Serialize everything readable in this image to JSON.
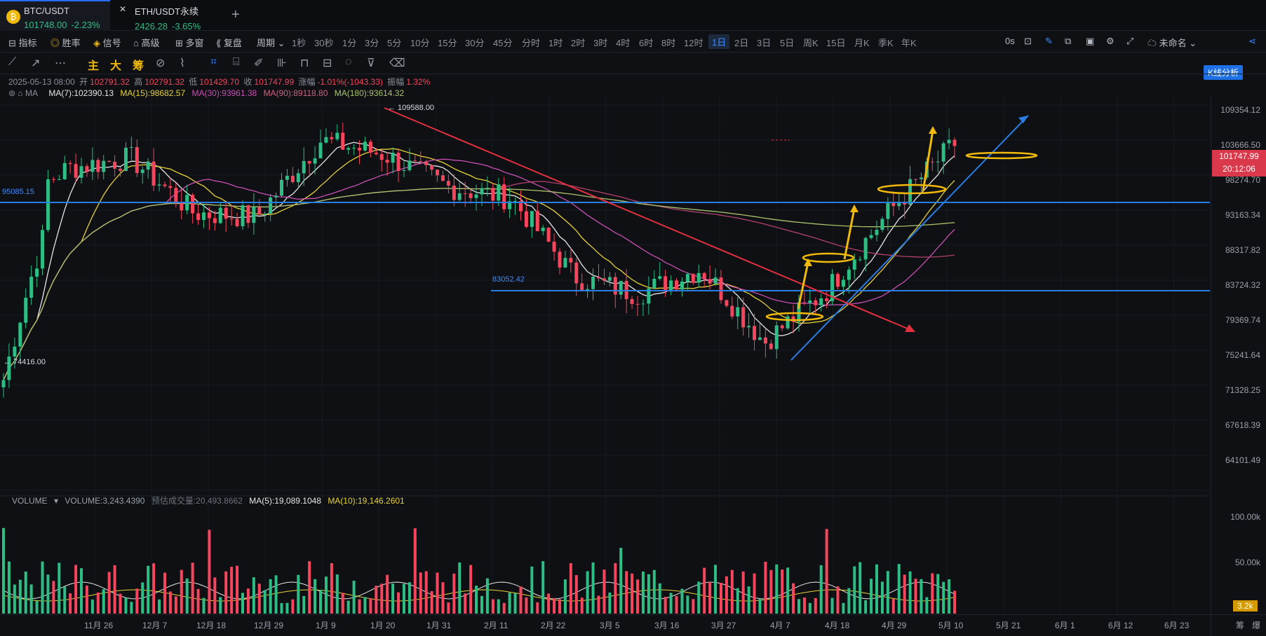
{
  "tabs": [
    {
      "symbol": "BTC/USDT",
      "price": "101748.00",
      "change": "-2.23%",
      "icon": "binance-coin-icon"
    },
    {
      "symbol": "ETH/USDT永续",
      "price": "2426.28",
      "change": "-3.65%",
      "icon": "close-x-icon"
    }
  ],
  "toolbar1": {
    "items": [
      "指标",
      "胜率",
      "信号",
      "高级",
      "多窗",
      "复盘",
      "周期"
    ],
    "periods": [
      "1秒",
      "30秒",
      "1分",
      "3分",
      "5分",
      "10分",
      "15分",
      "30分",
      "45分",
      "分时",
      "1时",
      "2时",
      "3时",
      "4时",
      "6时",
      "8时",
      "12时",
      "1日",
      "2日",
      "3日",
      "5日",
      "周K",
      "15日",
      "月K",
      "季K",
      "年K"
    ],
    "selected_period": "1日",
    "countdown": "0s",
    "layout_name": "未命名",
    "analysis_btn": "K线分析"
  },
  "toolbar2": {
    "labels": [
      "主",
      "大",
      "筹"
    ]
  },
  "ohlc": {
    "date": "2025-05-13 08:00",
    "open_label": "开",
    "open": "102791.32",
    "high_label": "高",
    "high": "102791.32",
    "low_label": "低",
    "low": "101429.70",
    "close_label": "收",
    "close": "101747.99",
    "change_label": "涨幅",
    "change": "-1.01%(-1043.33)",
    "amp_label": "振幅",
    "amp": "1.32%"
  },
  "ma": {
    "label": "MA",
    "ma7": "MA(7):102390.13",
    "ma15": "MA(15):98682.57",
    "ma30": "MA(30):93961.38",
    "ma90": "MA(90):89118.80",
    "ma180": "MA(180):93614.32",
    "colors": {
      "ma7": "#e6e6e6",
      "ma15": "#e8d23a",
      "ma30": "#c94fb3",
      "ma90": "#b4426c",
      "ma180": "#a9c46a"
    }
  },
  "annotations": {
    "high_marker": "109588.00",
    "low_marker": "74416.00",
    "line1_label": "95085.15",
    "line2_label": "83052.42"
  },
  "price_axis": {
    "ticks": [
      "109354.12",
      "103666.50",
      "98274.70",
      "93163.34",
      "88317.82",
      "83724.32",
      "79369.74",
      "75241.64",
      "71328.25",
      "67618.39",
      "64101.49"
    ],
    "last_price": "101747.99",
    "countdown": "20:12:06",
    "vol_ticks": [
      "100.00k",
      "50.00k"
    ],
    "vol_last": "3.2k"
  },
  "volume": {
    "label": "VOLUME",
    "value": "VOLUME:3,243.4390",
    "est": "预估成交量:20,493.8662",
    "ma5": "MA(5):19,089.1048",
    "ma10": "MA(10):19,146.2601"
  },
  "date_axis": [
    "11月 26",
    "12月 7",
    "12月 18",
    "12月 29",
    "1月 9",
    "1月 20",
    "1月 31",
    "2月 11",
    "2月 22",
    "3月 5",
    "3月 16",
    "3月 27",
    "4月 7",
    "4月 18",
    "4月 29",
    "5月 10",
    "5月 21",
    "6月 1",
    "6月 12",
    "6月 23"
  ],
  "date_axis_right": [
    "筹",
    "爆"
  ],
  "colors": {
    "up": "#2ebd85",
    "down": "#f6465d",
    "accent": "#2a6df4",
    "line_blue": "#2a7de1",
    "trend_red": "#e2303f",
    "marker_yellow": "#f0b90b"
  },
  "chart_data": {
    "type": "candlestick",
    "x": [
      "11月 26",
      "12月 7",
      "12月 18",
      "12月 29",
      "1月 9",
      "1月 20",
      "1月 31",
      "2月 11",
      "2月 22",
      "3月 5",
      "3月 16",
      "3月 27",
      "4月 7",
      "4月 18",
      "4月 29",
      "5月 10"
    ],
    "close": [
      94000,
      100000,
      101500,
      94000,
      93500,
      104000,
      102000,
      97500,
      96000,
      86000,
      84000,
      87000,
      78500,
      84500,
      94500,
      103500
    ],
    "ylim": [
      64000,
      110000
    ],
    "high": "109588.00",
    "low": "74416.00"
  }
}
